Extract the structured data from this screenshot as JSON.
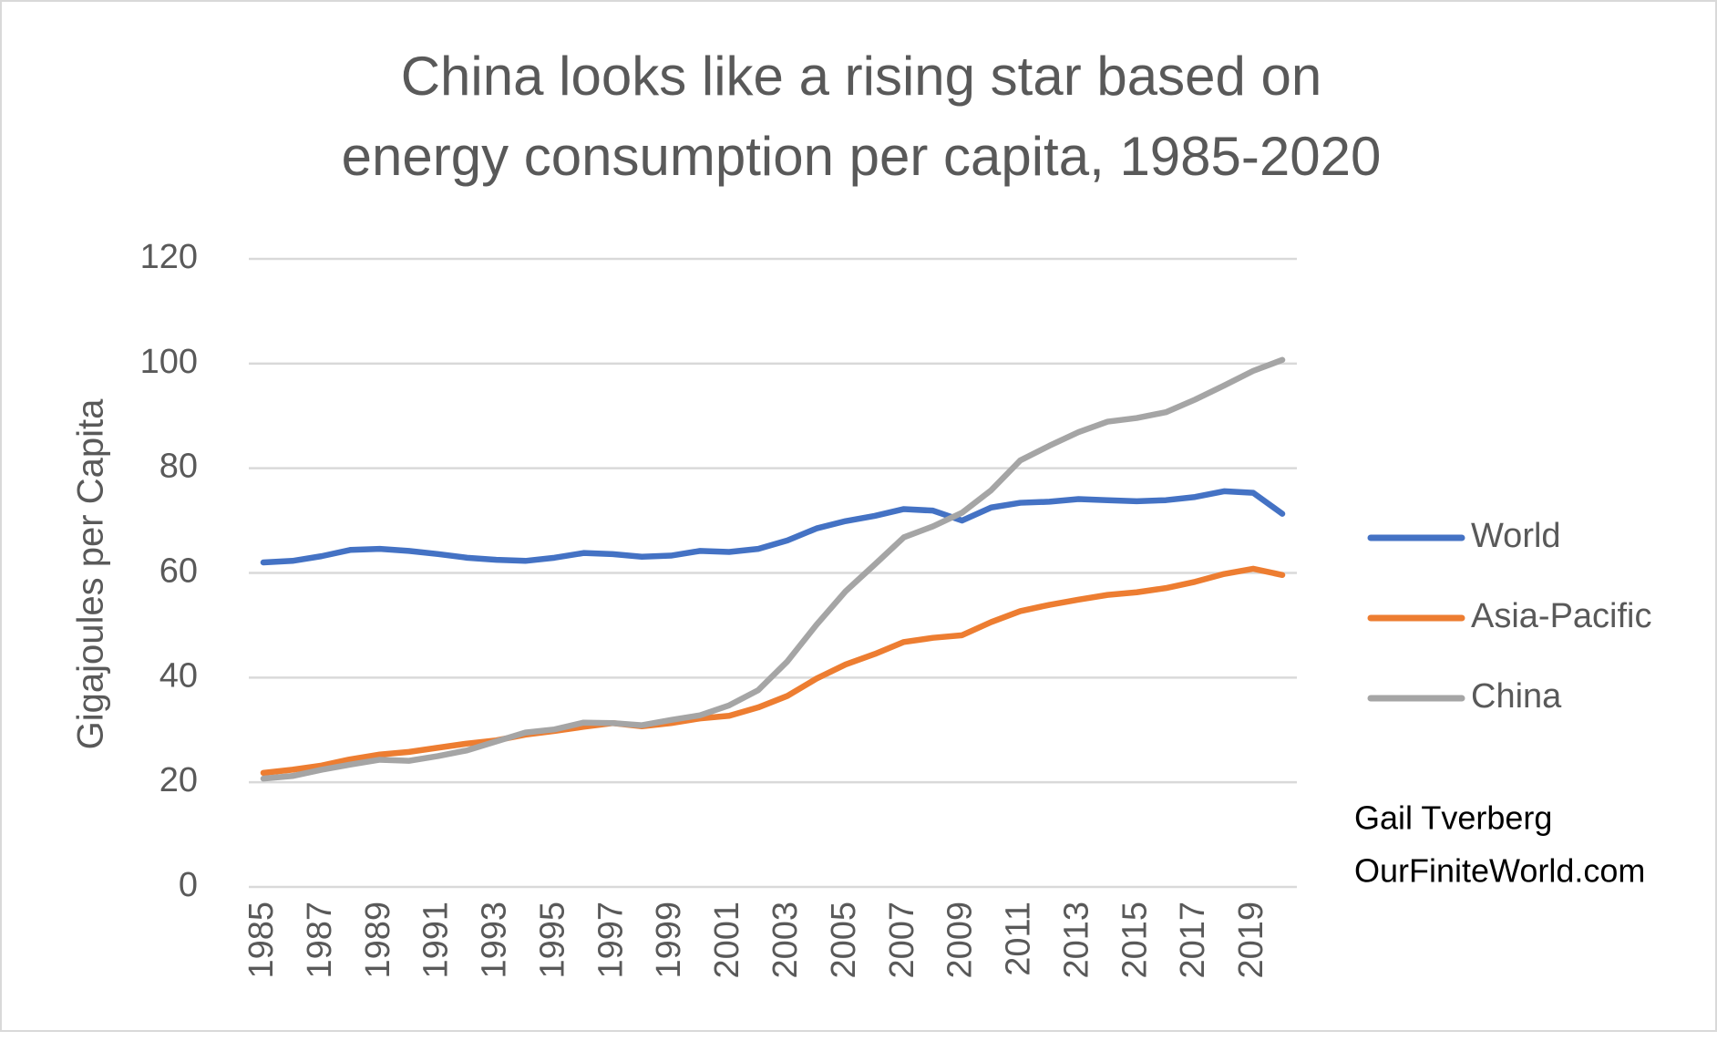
{
  "chart_data": {
    "type": "line",
    "title": [
      "China looks like a rising star based on",
      "energy consumption per capita, 1985-2020"
    ],
    "y_label": "Gigajoules per Capita",
    "annotations": [
      "Gail Tverberg",
      "OurFiniteWorld.com"
    ],
    "categories": [
      "1985",
      null,
      "1987",
      null,
      "1989",
      null,
      "1991",
      null,
      "1993",
      null,
      "1995",
      null,
      "1997",
      null,
      "1999",
      null,
      "2001",
      null,
      "2003",
      null,
      "2005",
      null,
      "2007",
      null,
      "2009",
      null,
      "2011",
      null,
      "2013",
      null,
      "2015",
      null,
      "2017",
      null,
      "2019",
      null
    ],
    "series": [
      {
        "name": "World",
        "color": "#4472c4",
        "values": [
          62,
          62.3,
          63.2,
          64.4,
          64.6,
          64.2,
          63.6,
          62.9,
          62.5,
          62.3,
          62.9,
          63.8,
          63.6,
          63.1,
          63.3,
          64.2,
          64.0,
          64.6,
          66.2,
          68.5,
          69.9,
          70.9,
          72.2,
          71.9,
          70.0,
          72.5,
          73.4,
          73.6,
          74.1,
          73.9,
          73.7,
          73.9,
          74.5,
          75.6,
          75.3,
          71.3
        ]
      },
      {
        "name": "Asia-Pacific",
        "color": "#ed7d31",
        "values": [
          21.8,
          22.4,
          23.2,
          24.4,
          25.3,
          25.8,
          26.6,
          27.4,
          28.0,
          29.1,
          29.8,
          30.6,
          31.3,
          30.7,
          31.3,
          32.2,
          32.7,
          34.3,
          36.5,
          39.8,
          42.5,
          44.5,
          46.8,
          47.6,
          48.1,
          50.6,
          52.7,
          53.9,
          54.9,
          55.8,
          56.3,
          57.1,
          58.3,
          59.8,
          60.8,
          59.6
        ]
      },
      {
        "name": "China",
        "color": "#a5a5a5",
        "values": [
          20.7,
          21.2,
          22.4,
          23.4,
          24.3,
          24.1,
          25.0,
          26.1,
          27.8,
          29.5,
          30.1,
          31.4,
          31.3,
          30.9,
          31.9,
          32.8,
          34.7,
          37.6,
          43.1,
          50.1,
          56.5,
          61.6,
          66.8,
          68.9,
          71.5,
          75.8,
          81.5,
          84.3,
          86.9,
          88.9,
          89.6,
          90.7,
          93.1,
          95.8,
          98.6,
          100.7
        ]
      }
    ],
    "ylim": [
      0,
      120
    ],
    "yticks": [
      0,
      20,
      40,
      60,
      80,
      100,
      120
    ],
    "grid": true
  }
}
